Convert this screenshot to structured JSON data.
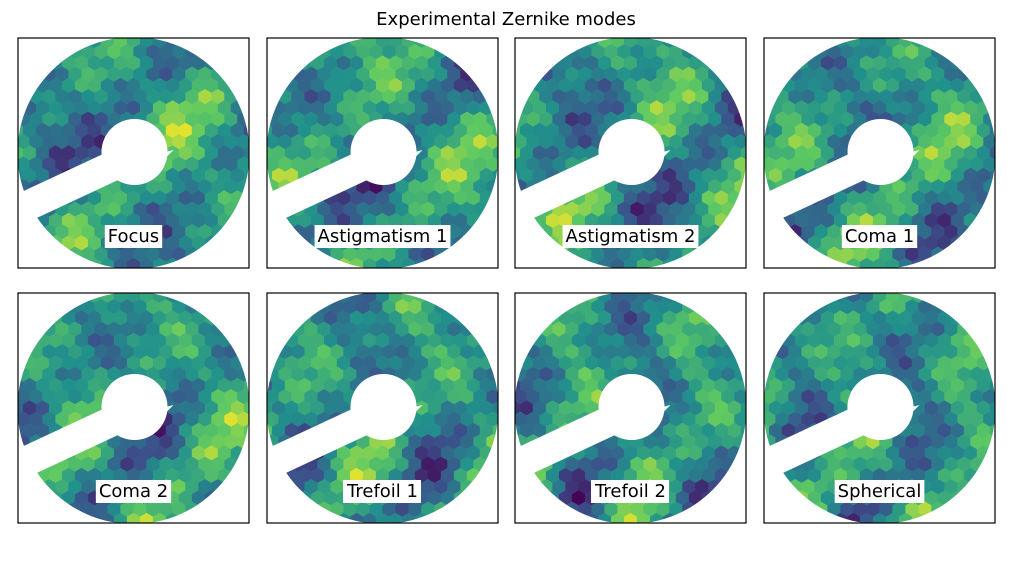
{
  "title": "Experimental Zernike modes",
  "panels": [
    {
      "label": "Focus"
    },
    {
      "label": "Astigmatism 1"
    },
    {
      "label": "Astigmatism 2"
    },
    {
      "label": "Coma 1"
    },
    {
      "label": "Coma 2"
    },
    {
      "label": "Trefoil 1"
    },
    {
      "label": "Trefoil 2"
    },
    {
      "label": "Spherical"
    }
  ]
}
